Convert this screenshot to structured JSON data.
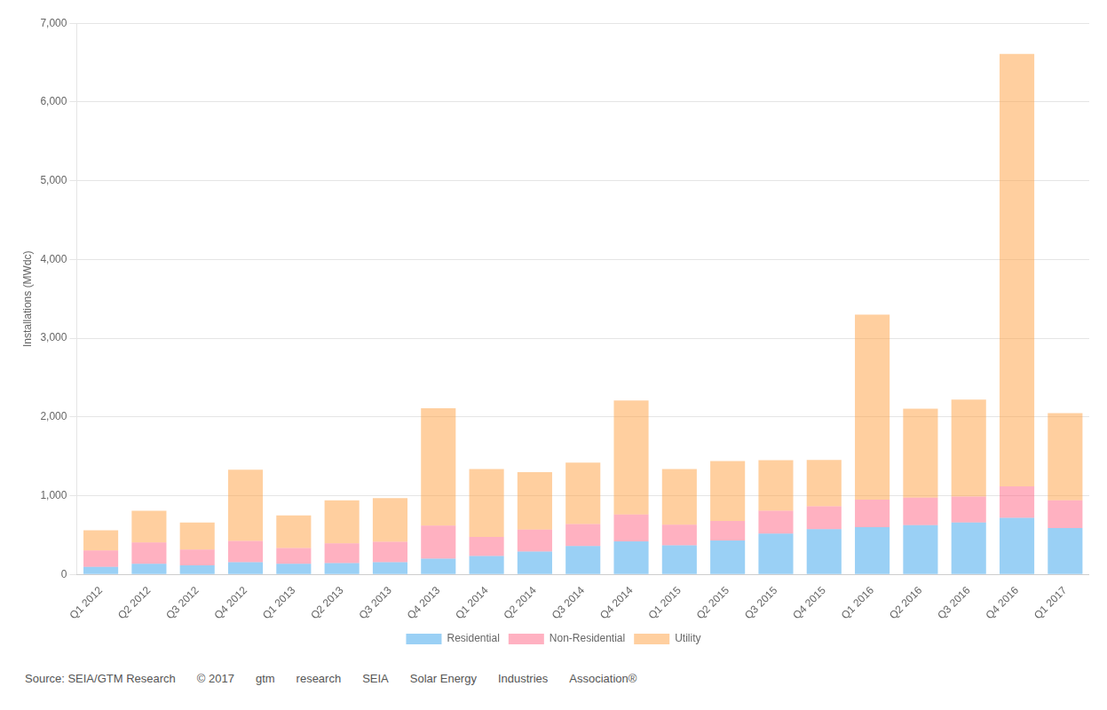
{
  "chart_data": {
    "type": "bar",
    "stacked": true,
    "y_label": "Installations (MWdc)",
    "categories": [
      "Q1 2012",
      "Q2 2012",
      "Q3 2012",
      "Q4 2012",
      "Q1 2013",
      "Q2 2013",
      "Q3 2013",
      "Q4 2013",
      "Q1 2014",
      "Q2 2014",
      "Q3 2014",
      "Q4 2014",
      "Q1 2015",
      "Q2 2015",
      "Q3 2015",
      "Q4 2015",
      "Q1 2016",
      "Q2 2016",
      "Q3 2016",
      "Q4 2016",
      "Q1 2017"
    ],
    "series": [
      {
        "name": "Residential",
        "values": [
          95,
          135,
          115,
          155,
          135,
          145,
          155,
          200,
          235,
          290,
          360,
          420,
          370,
          430,
          520,
          575,
          600,
          625,
          660,
          720,
          590
        ]
      },
      {
        "name": "Non-Residential",
        "values": [
          210,
          270,
          200,
          270,
          200,
          250,
          260,
          420,
          240,
          280,
          280,
          340,
          260,
          250,
          290,
          290,
          350,
          350,
          330,
          400,
          350
        ]
      },
      {
        "name": "Utility",
        "values": [
          255,
          405,
          345,
          905,
          415,
          545,
          555,
          1490,
          865,
          730,
          780,
          1450,
          710,
          760,
          640,
          590,
          2350,
          1130,
          1230,
          5490,
          1110
        ]
      }
    ],
    "ylim": [
      0,
      7000
    ],
    "yticks": [
      0,
      {
        "value": 1000,
        "label": "1,000"
      },
      {
        "value": 2000,
        "label": "2,000"
      },
      {
        "value": 3000,
        "label": "3,000"
      },
      {
        "value": 4000,
        "label": "4,000"
      },
      {
        "value": 5000,
        "label": "5,000"
      },
      {
        "value": 6000,
        "label": "6,000"
      },
      {
        "value": 7000,
        "label": "7,000"
      }
    ],
    "grid": true,
    "legend": "bottom",
    "annotations": [
      "Source: SEIA/GTM Research",
      "© 2017",
      "gtm",
      "research",
      "SEIA",
      "Solar Energy",
      "Industries",
      "Association®"
    ]
  }
}
